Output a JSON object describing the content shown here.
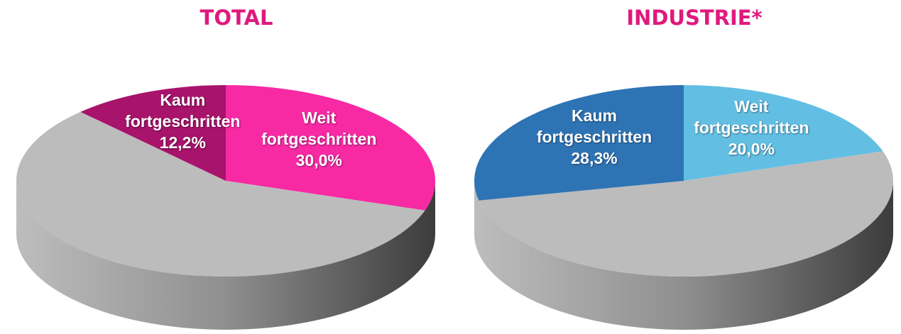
{
  "chart_data": [
    {
      "type": "pie",
      "title": "TOTAL",
      "categories": [
        "Weit fortgeschritten",
        null,
        "Kaum fortgeschritten"
      ],
      "values": [
        30,
        57.8,
        12.2
      ],
      "value_labels": [
        "30,0%",
        null,
        "12,2%"
      ],
      "colors": [
        "#f72aa4",
        "#bcbcbc",
        "#a8136b"
      ]
    },
    {
      "type": "pie",
      "title": "INDUSTRIE*",
      "categories": [
        "Weit fortgeschritten",
        null,
        "Kaum fortgeschritten"
      ],
      "values": [
        20,
        51.7,
        28.3
      ],
      "value_labels": [
        "20,0%",
        null,
        "28,3%"
      ],
      "colors": [
        "#62bfe3",
        "#bcbcbc",
        "#2e74b5"
      ]
    }
  ]
}
